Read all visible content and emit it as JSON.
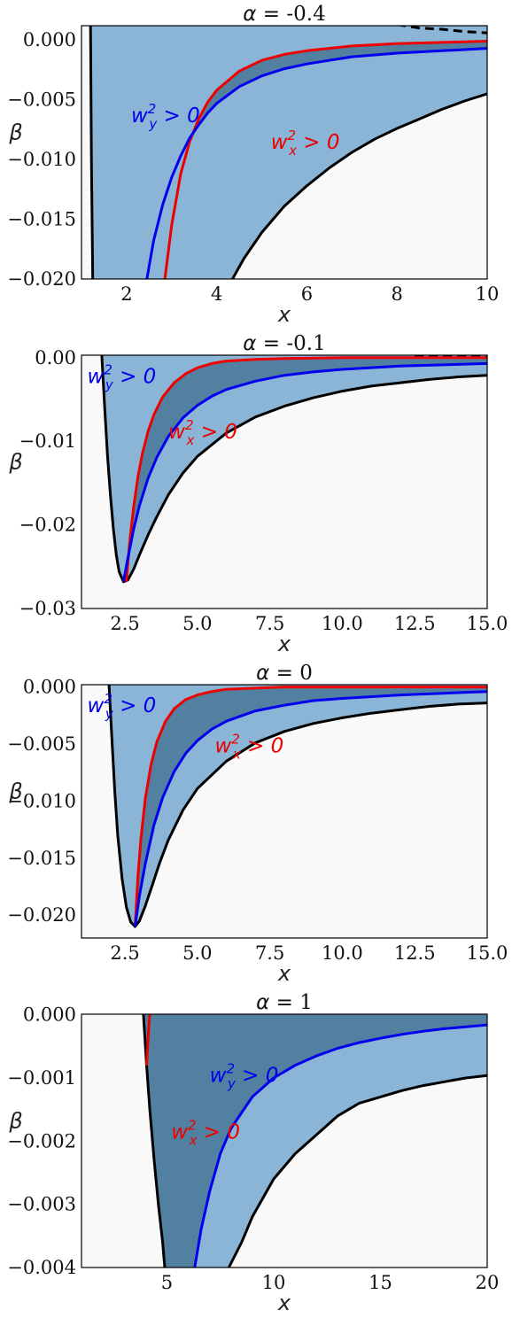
{
  "chart_data": [
    {
      "type": "area",
      "title_symbol": "α",
      "title_value": "-0.4",
      "xlabel": "x",
      "ylabel": "β",
      "xlim": [
        1,
        10
      ],
      "ylim": [
        -0.02,
        0.0012
      ],
      "xticks": [
        2,
        4,
        6,
        8,
        10
      ],
      "xtick_labels": [
        "2",
        "4",
        "6",
        "8",
        "10"
      ],
      "yticks": [
        0.0,
        -0.005,
        -0.01,
        -0.015,
        -0.02
      ],
      "ytick_labels": [
        "0.000",
        "−0.005",
        "−0.010",
        "−0.015",
        "−0.020"
      ],
      "grid": false,
      "annotations": [
        {
          "text_base": "w",
          "sub": "y",
          "sup": "2",
          "rest": " > 0",
          "color": "#0000ee",
          "x": 2.1,
          "y": -0.0063
        },
        {
          "text_base": "w",
          "sub": "x",
          "sup": "2",
          "rest": " > 0",
          "color": "#ee0000",
          "x": 5.2,
          "y": -0.0085
        }
      ],
      "series": [
        {
          "role": "boundary-upper",
          "style": "dashed",
          "color": "#000000",
          "x": [
            8,
            8.5,
            9,
            9.5,
            10
          ],
          "y": [
            0.0013,
            0.001,
            0.0009,
            0.0007,
            0.0006
          ]
        },
        {
          "role": "boundary-lower",
          "style": "solid",
          "color": "#000000",
          "x": [
            4.35,
            4.6,
            5,
            5.5,
            6,
            6.5,
            7,
            7.5,
            8,
            8.5,
            9,
            9.5,
            10
          ],
          "y": [
            -0.02,
            -0.0183,
            -0.0161,
            -0.0139,
            -0.0122,
            -0.0107,
            -0.0094,
            -0.0083,
            -0.0074,
            -0.0066,
            -0.0058,
            -0.0051,
            -0.0045
          ]
        },
        {
          "role": "left-wall",
          "style": "solid",
          "color": "#000000",
          "x": [
            1.2,
            1.22,
            1.25
          ],
          "y": [
            0.0012,
            -0.01,
            -0.02
          ]
        },
        {
          "name": "w_x",
          "style": "solid",
          "color": "#ee0000",
          "x": [
            2.85,
            3.0,
            3.2,
            3.4,
            3.6,
            3.8,
            4.0,
            4.5,
            5.0,
            5.5,
            6.0,
            7.0,
            8.0,
            9.0,
            10.0
          ],
          "y": [
            -0.02,
            -0.0155,
            -0.0112,
            -0.0085,
            -0.0066,
            -0.0052,
            -0.0042,
            -0.0026,
            -0.0017,
            -0.0012,
            -0.0009,
            -0.0005,
            -0.0003,
            -0.0002,
            -0.0001
          ]
        },
        {
          "name": "w_y",
          "style": "solid",
          "color": "#0000ee",
          "x": [
            2.45,
            2.6,
            2.8,
            3.0,
            3.2,
            3.4,
            3.6,
            3.8,
            4.0,
            4.5,
            5.0,
            5.5,
            6.0,
            7.0,
            8.0,
            9.0,
            10.0
          ],
          "y": [
            -0.02,
            -0.0168,
            -0.0138,
            -0.0115,
            -0.0097,
            -0.0082,
            -0.0071,
            -0.0061,
            -0.0053,
            -0.0039,
            -0.003,
            -0.0024,
            -0.002,
            -0.0014,
            -0.0011,
            -0.0009,
            -0.0007
          ]
        }
      ],
      "regions": [
        {
          "name": "stable",
          "color": "#8bb5d6"
        },
        {
          "name": "both-positive",
          "color": "#5180a0"
        },
        {
          "name": "excluded",
          "color": "#f9f9f9"
        }
      ]
    },
    {
      "type": "area",
      "title_symbol": "α",
      "title_value": "-0.1",
      "xlabel": "x",
      "ylabel": "β",
      "xlim": [
        1,
        15
      ],
      "ylim": [
        -0.03,
        0.0003
      ],
      "xticks": [
        2.5,
        5.0,
        7.5,
        10.0,
        12.5,
        15.0
      ],
      "xtick_labels": [
        "2.5",
        "5.0",
        "7.5",
        "10.0",
        "12.5",
        "15.0"
      ],
      "yticks": [
        0.0,
        -0.01,
        -0.02,
        -0.03
      ],
      "ytick_labels": [
        "0.00",
        "−0.01",
        "−0.02",
        "−0.03"
      ],
      "grid": false,
      "annotations": [
        {
          "text_base": "w",
          "sub": "y",
          "sup": "2",
          "rest": " > 0",
          "color": "#0000ee",
          "x": 1.2,
          "y": -0.0022
        },
        {
          "text_base": "w",
          "sub": "x",
          "sup": "2",
          "rest": " > 0",
          "color": "#ee0000",
          "x": 4.0,
          "y": -0.0088
        }
      ],
      "series": [
        {
          "role": "boundary-upper",
          "style": "dashed",
          "color": "#000000",
          "x": [
            12.5,
            13.5,
            14.5,
            15.0
          ],
          "y": [
            0.0001,
            0.0002,
            0.0003,
            0.0003
          ]
        },
        {
          "role": "boundary-lower",
          "style": "solid",
          "color": "#000000",
          "x": [
            1.7,
            1.8,
            1.9,
            2.0,
            2.1,
            2.2,
            2.3,
            2.45,
            2.6,
            2.8,
            3.0,
            3.3,
            3.6,
            4.0,
            4.5,
            5.0,
            6.0,
            7.0,
            8.0,
            9.0,
            10.0,
            11.0,
            12.0,
            13.0,
            14.0,
            15.0
          ],
          "y": [
            0.0003,
            -0.006,
            -0.0118,
            -0.0165,
            -0.0205,
            -0.0236,
            -0.0256,
            -0.0268,
            -0.0266,
            -0.0253,
            -0.0236,
            -0.0212,
            -0.019,
            -0.0164,
            -0.0138,
            -0.0118,
            -0.009,
            -0.0071,
            -0.0058,
            -0.0048,
            -0.004,
            -0.0034,
            -0.003,
            -0.0026,
            -0.0023,
            -0.0021
          ]
        },
        {
          "name": "w_x",
          "style": "solid",
          "color": "#ee0000",
          "x": [
            2.55,
            2.65,
            2.8,
            2.95,
            3.1,
            3.3,
            3.5,
            3.8,
            4.2,
            4.6,
            5.0,
            5.5,
            6.0,
            7.0,
            8.0,
            10.0,
            12.0,
            15.0
          ],
          "y": [
            -0.0268,
            -0.0225,
            -0.0178,
            -0.0142,
            -0.0115,
            -0.0088,
            -0.0068,
            -0.0047,
            -0.003,
            -0.0019,
            -0.0012,
            -0.0007,
            -0.0004,
            -0.0002,
            -0.0001,
            0.0,
            0.0,
            0.0
          ]
        },
        {
          "name": "w_y",
          "style": "solid",
          "color": "#0000ee",
          "x": [
            2.45,
            2.6,
            2.8,
            3.0,
            3.3,
            3.6,
            4.0,
            4.5,
            5.0,
            5.5,
            6.0,
            7.0,
            8.0,
            9.0,
            10.0,
            12.0,
            14.0,
            15.0
          ],
          "y": [
            -0.0268,
            -0.024,
            -0.0205,
            -0.0177,
            -0.0144,
            -0.0119,
            -0.0094,
            -0.0072,
            -0.0057,
            -0.0046,
            -0.0038,
            -0.0028,
            -0.0021,
            -0.0017,
            -0.0014,
            -0.001,
            -0.0008,
            -0.0007
          ]
        }
      ],
      "regions": [
        {
          "name": "stable",
          "color": "#8bb5d6"
        },
        {
          "name": "both-positive",
          "color": "#5180a0"
        },
        {
          "name": "excluded",
          "color": "#f9f9f9"
        }
      ]
    },
    {
      "type": "area",
      "title_symbol": "α",
      "title_value": "0",
      "xlabel": "x",
      "ylabel": "β",
      "xlim": [
        1,
        15
      ],
      "ylim": [
        -0.022,
        0.0002
      ],
      "xticks": [
        2.5,
        5.0,
        7.5,
        10.0,
        12.5,
        15.0
      ],
      "xtick_labels": [
        "2.5",
        "5.0",
        "7.5",
        "10.0",
        "12.5",
        "15.0"
      ],
      "yticks": [
        0.0,
        -0.005,
        -0.01,
        -0.015,
        -0.02
      ],
      "ytick_labels": [
        "0.000",
        "−0.005",
        "−0.010",
        "−0.015",
        "−0.020"
      ],
      "grid": false,
      "annotations": [
        {
          "text_base": "w",
          "sub": "y",
          "sup": "2",
          "rest": " > 0",
          "color": "#0000ee",
          "x": 1.2,
          "y": -0.0016
        },
        {
          "text_base": "w",
          "sub": "x",
          "sup": "2",
          "rest": " > 0",
          "color": "#ee0000",
          "x": 5.6,
          "y": -0.0051
        }
      ],
      "series": [
        {
          "role": "boundary-lower",
          "style": "solid",
          "color": "#000000",
          "x": [
            1.95,
            2.05,
            2.15,
            2.25,
            2.4,
            2.55,
            2.7,
            2.85,
            3.0,
            3.2,
            3.4,
            3.7,
            4.0,
            4.5,
            5.0,
            6.0,
            7.0,
            8.0,
            9.0,
            10.0,
            11.0,
            12.0,
            13.0,
            14.0,
            15.0
          ],
          "y": [
            0.0002,
            -0.0045,
            -0.0092,
            -0.013,
            -0.0168,
            -0.0193,
            -0.0206,
            -0.021,
            -0.0205,
            -0.0192,
            -0.0177,
            -0.0154,
            -0.0134,
            -0.0108,
            -0.0089,
            -0.0065,
            -0.0049,
            -0.0039,
            -0.0032,
            -0.0027,
            -0.0023,
            -0.002,
            -0.0017,
            -0.0015,
            -0.0014
          ]
        },
        {
          "name": "w_x",
          "style": "solid",
          "color": "#ee0000",
          "x": [
            2.85,
            2.95,
            3.05,
            3.2,
            3.4,
            3.6,
            3.9,
            4.2,
            4.6,
            5.0,
            5.5,
            6.0,
            7.0,
            8.0,
            10.0,
            12.0,
            15.0
          ],
          "y": [
            -0.021,
            -0.0165,
            -0.0133,
            -0.0098,
            -0.0068,
            -0.0048,
            -0.003,
            -0.0019,
            -0.0011,
            -0.0007,
            -0.0004,
            -0.0002,
            -0.0001,
            0.0,
            0.0,
            0.0,
            0.0
          ]
        },
        {
          "name": "w_y",
          "style": "solid",
          "color": "#0000ee",
          "x": [
            2.85,
            3.0,
            3.2,
            3.5,
            3.8,
            4.2,
            4.6,
            5.0,
            5.5,
            6.0,
            7.0,
            8.0,
            9.0,
            10.0,
            12.0,
            14.0,
            15.0
          ],
          "y": [
            -0.021,
            -0.0183,
            -0.0155,
            -0.0121,
            -0.0097,
            -0.0074,
            -0.0058,
            -0.0047,
            -0.0037,
            -0.003,
            -0.0021,
            -0.0016,
            -0.0012,
            -0.001,
            -0.0007,
            -0.0005,
            -0.0004
          ]
        }
      ],
      "regions": [
        {
          "name": "stable",
          "color": "#8bb5d6"
        },
        {
          "name": "both-positive",
          "color": "#5180a0"
        },
        {
          "name": "excluded",
          "color": "#f9f9f9"
        }
      ]
    },
    {
      "type": "area",
      "title_symbol": "α",
      "title_value": "1",
      "xlabel": "x",
      "ylabel": "β",
      "xlim": [
        1,
        20
      ],
      "ylim": [
        -0.004,
        1e-05
      ],
      "xticks": [
        5,
        10,
        15,
        20
      ],
      "xtick_labels": [
        "5",
        "10",
        "15",
        "20"
      ],
      "yticks": [
        0.0,
        -0.001,
        -0.002,
        -0.003,
        -0.004
      ],
      "ytick_labels": [
        "0.000",
        "−0.001",
        "−0.002",
        "−0.003",
        "−0.004"
      ],
      "grid": false,
      "annotations": [
        {
          "text_base": "w",
          "sub": "y",
          "sup": "2",
          "rest": " > 0",
          "color": "#0000ee",
          "x": 7.0,
          "y": -0.00095
        },
        {
          "text_base": "w",
          "sub": "x",
          "sup": "2",
          "rest": " > 0",
          "color": "#ee0000",
          "x": 5.2,
          "y": -0.00185
        }
      ],
      "series": [
        {
          "role": "boundary-left",
          "style": "solid",
          "color": "#000000",
          "x": [
            3.9,
            4.05,
            4.2,
            4.4,
            4.6,
            4.8,
            4.9
          ],
          "y": [
            1e-05,
            -0.0008,
            -0.0015,
            -0.0023,
            -0.003,
            -0.0036,
            -0.004
          ]
        },
        {
          "role": "boundary-lower",
          "style": "solid",
          "color": "#000000",
          "x": [
            7.9,
            8.5,
            9.0,
            10.0,
            11.0,
            12.0,
            13.0,
            14.0,
            15.0,
            16.0,
            17.0,
            18.0,
            19.0,
            20.0
          ],
          "y": [
            -0.004,
            -0.0036,
            -0.0032,
            -0.0026,
            -0.0022,
            -0.0019,
            -0.0016,
            -0.0014,
            -0.0013,
            -0.0012,
            -0.00112,
            -0.00106,
            -0.001,
            -0.00096
          ]
        },
        {
          "name": "w_x",
          "style": "solid",
          "color": "#ee0000",
          "x": [
            4.05,
            4.1,
            4.15,
            4.2
          ],
          "y": [
            -0.0008,
            -0.0005,
            -0.0002,
            1e-05
          ]
        },
        {
          "name": "w_y",
          "style": "solid",
          "color": "#0000ee",
          "x": [
            6.3,
            6.6,
            7.0,
            7.5,
            8.0,
            9.0,
            10.0,
            11.0,
            12.0,
            13.0,
            14.0,
            15.0,
            16.0,
            17.0,
            18.0,
            19.0,
            20.0
          ],
          "y": [
            -0.004,
            -0.0034,
            -0.0028,
            -0.0022,
            -0.0018,
            -0.0013,
            -0.001,
            -0.0008,
            -0.00065,
            -0.00053,
            -0.00044,
            -0.00037,
            -0.00031,
            -0.00026,
            -0.00022,
            -0.00019,
            -0.00016
          ]
        }
      ],
      "regions": [
        {
          "name": "stable",
          "color": "#8bb5d6"
        },
        {
          "name": "both-positive",
          "color": "#5180a0"
        },
        {
          "name": "excluded",
          "color": "#f9f9f9"
        }
      ]
    }
  ]
}
